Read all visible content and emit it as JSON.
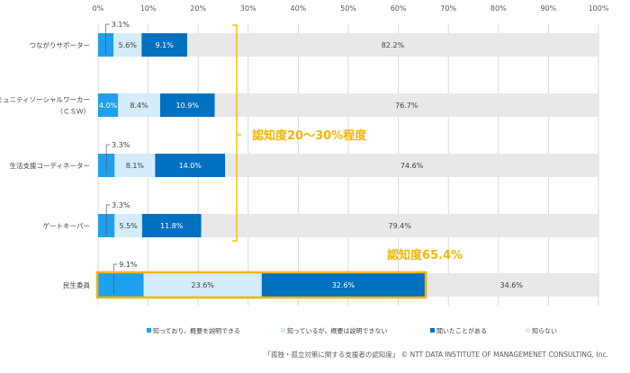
{
  "chart_data": {
    "type": "bar",
    "orientation": "horizontal",
    "stacked": true,
    "categories": [
      "つながりサポーター",
      "コミュニティソーシャルワーカー\n（ＣＳＷ）",
      "生活支援コーディネーター",
      "ゲートキーパー",
      "民生委員"
    ],
    "series": [
      {
        "name": "知っており、概要を説明できる",
        "color": "#1ea0ee",
        "values": [
          3.1,
          4.0,
          3.3,
          3.3,
          9.1
        ]
      },
      {
        "name": "知っているが、概要は説明できない",
        "color": "#d4ebfa",
        "values": [
          5.6,
          8.4,
          8.1,
          5.5,
          23.6
        ]
      },
      {
        "name": "聞いたことがある",
        "color": "#0070c0",
        "values": [
          9.1,
          10.9,
          14.0,
          11.8,
          32.6
        ]
      },
      {
        "name": "知らない",
        "color": "#e8e8e8",
        "values": [
          82.2,
          76.7,
          74.6,
          79.4,
          34.6
        ]
      }
    ],
    "value_labels": [
      [
        "3.1%",
        "5.6%",
        "9.1%",
        "82.2%"
      ],
      [
        "4.0%",
        "8.4%",
        "10.9%",
        "76.7%"
      ],
      [
        "3.3%",
        "8.1%",
        "14.0%",
        "74.6%"
      ],
      [
        "3.3%",
        "5.5%",
        "11.8%",
        "79.4%"
      ],
      [
        "9.1%",
        "23.6%",
        "32.6%",
        "34.6%"
      ]
    ],
    "xlim": [
      0,
      100
    ],
    "xticks": [
      "0%",
      "10%",
      "20%",
      "30%",
      "40%",
      "50%",
      "60%",
      "70%",
      "80%",
      "90%",
      "100%"
    ],
    "grid": true,
    "legend_position": "bottom",
    "annotations": [
      "認知度20～30%程度",
      "認知度65.4%"
    ],
    "highlight_color": "#f5b400"
  },
  "footnote": "「孤独・孤立対策に関する支援者の認知度」 © NTT DATA INSTITUTE OF MANAGEMENET CONSULTING, Inc."
}
